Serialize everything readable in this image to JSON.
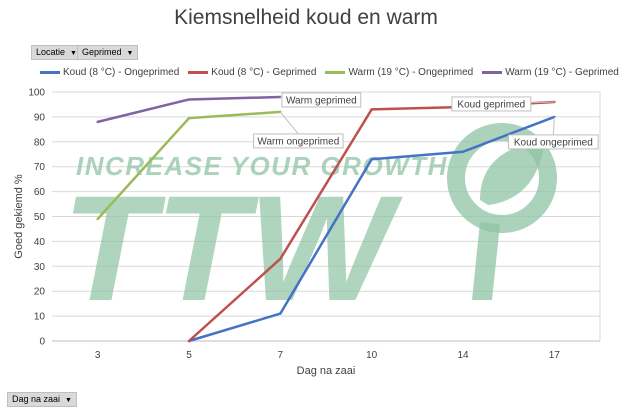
{
  "filters": {
    "locatie": "Locatie",
    "geprimed": "Geprimed",
    "dag_na_zaai": "Dag na zaai"
  },
  "watermark": {
    "slogan": "INCREASE YOUR GROWTH",
    "logo": "TTW",
    "color": "#8fc3a3"
  },
  "chart_data": {
    "type": "line",
    "title": "Kiemsnelheid koud en warm",
    "xlabel": "Dag na zaai",
    "ylabel": "Goed gekiemd %",
    "categories": [
      "3",
      "5",
      "7",
      "10",
      "14",
      "17"
    ],
    "ylim": [
      0,
      100
    ],
    "yticks": [
      0,
      10,
      20,
      30,
      40,
      50,
      60,
      70,
      80,
      90,
      100
    ],
    "grid": true,
    "legend_position": "top",
    "series": [
      {
        "name": "Koud (8 °C) - Ongeprimed",
        "color": "#4472c4",
        "values": [
          null,
          0,
          11,
          73,
          76,
          90
        ]
      },
      {
        "name": "Koud (8 °C) - Geprimed",
        "color": "#c0504d",
        "values": [
          null,
          0,
          33,
          93,
          94,
          96
        ]
      },
      {
        "name": "Warm (19 °C) - Ongeprimed",
        "color": "#9bbb59",
        "values": [
          49,
          89.5,
          92,
          null,
          null,
          null
        ]
      },
      {
        "name": "Warm (19 °C) - Geprimed",
        "color": "#8064a2",
        "values": [
          88,
          97,
          98,
          null,
          null,
          null
        ]
      }
    ],
    "annotations": [
      {
        "text": "Warm geprimed",
        "series": 3,
        "index": 2
      },
      {
        "text": "Warm ongeprimed",
        "series": 2,
        "index": 2
      },
      {
        "text": "Koud geprimed",
        "series": 1,
        "index": 5
      },
      {
        "text": "Koud ongeprimed",
        "series": 0,
        "index": 5
      }
    ]
  }
}
